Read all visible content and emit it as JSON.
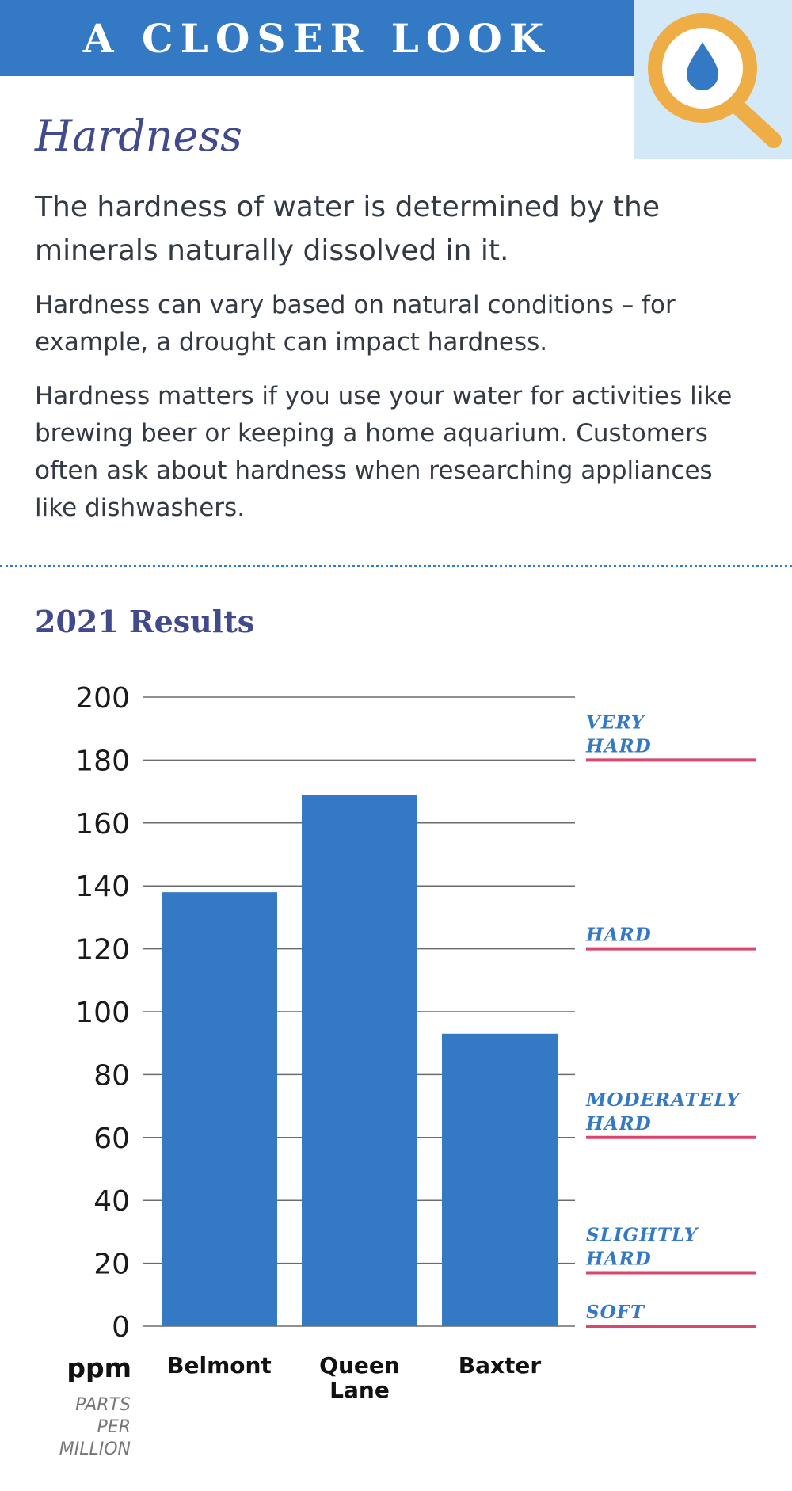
{
  "header": {
    "banner_text": "A CLOSER LOOK",
    "icon": "magnifier-water-drop-icon"
  },
  "section": {
    "title": "Hardness",
    "lead": "The hardness of water is determined by the minerals naturally dissolved in it.",
    "paragraphs": [
      "Hardness can vary based on natural conditions – for example, a drought can impact hardness.",
      "Hardness matters if you use your water for activities like brewing beer or keeping a home aquarium. Customers often ask about hardness when researching appliances like dishwashers."
    ]
  },
  "results_title": "2021 Results",
  "colors": {
    "bar": "#3479c4",
    "threshold_line": "#d9466e",
    "threshold_label": "#3479c4",
    "heading": "#414a8c",
    "banner": "#3479c4",
    "icon_ring": "#efae45",
    "icon_bg": "#d3e9f8"
  },
  "chart_data": {
    "type": "bar",
    "categories": [
      "Belmont",
      "Queen Lane",
      "Baxter"
    ],
    "category_labels": [
      [
        "Belmont"
      ],
      [
        "Queen",
        "Lane"
      ],
      [
        "Baxter"
      ]
    ],
    "values": [
      138,
      169,
      93
    ],
    "ylim": [
      0,
      200
    ],
    "yticks": [
      0,
      20,
      40,
      60,
      80,
      100,
      120,
      140,
      160,
      180,
      200
    ],
    "grid": true,
    "unit": "ppm",
    "unit_subtitle": [
      "PARTS",
      "PER",
      "MILLION"
    ],
    "thresholds": [
      {
        "label": [
          "VERY",
          "HARD"
        ],
        "value": 180
      },
      {
        "label": [
          "HARD"
        ],
        "value": 120
      },
      {
        "label": [
          "MODERATELY",
          "HARD"
        ],
        "value": 60
      },
      {
        "label": [
          "SLIGHTLY",
          "HARD"
        ],
        "value": 17
      },
      {
        "label": [
          "SOFT"
        ],
        "value": 0
      }
    ]
  }
}
